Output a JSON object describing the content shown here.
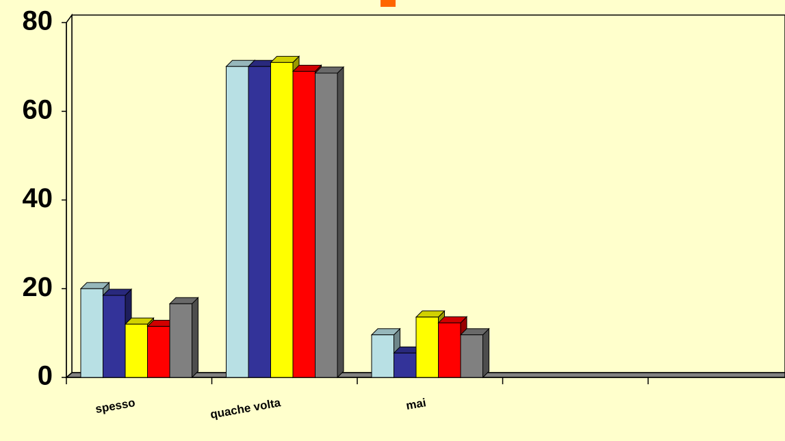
{
  "chart_data": {
    "type": "bar3d",
    "categories": [
      "spesso",
      "quache volta",
      "mai",
      null,
      null
    ],
    "series": [
      {
        "color": "#b8e0e4",
        "values": [
          20,
          70.1,
          9.6,
          null,
          null
        ]
      },
      {
        "color": "#333399",
        "values": [
          18.5,
          70.1,
          5.5,
          null,
          null
        ]
      },
      {
        "color": "#ffff00",
        "values": [
          12,
          71,
          13.6,
          null,
          null
        ]
      },
      {
        "color": "#ff0000",
        "values": [
          11.5,
          69,
          12.3,
          null,
          null
        ]
      },
      {
        "color": "#808080",
        "values": [
          16.6,
          68.6,
          9.6,
          null,
          null
        ]
      }
    ],
    "ylim": [
      0,
      80
    ],
    "yticks": [
      0,
      20,
      40,
      60,
      80
    ]
  }
}
